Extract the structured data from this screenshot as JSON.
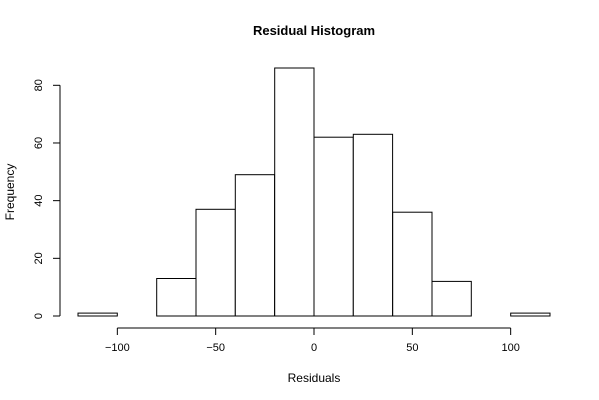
{
  "chart_data": {
    "type": "bar",
    "title": "Residual Histogram",
    "xlabel": "Residuals",
    "ylabel": "Frequency",
    "bin_edges": [
      -120,
      -100,
      -80,
      -60,
      -40,
      -20,
      0,
      20,
      40,
      60,
      80,
      100,
      120
    ],
    "values": [
      1,
      0,
      13,
      37,
      49,
      86,
      62,
      63,
      36,
      12,
      0,
      1
    ],
    "xlim": [
      -120,
      120
    ],
    "ylim": [
      0,
      86
    ],
    "xticks": [
      -100,
      -50,
      0,
      50,
      100
    ],
    "yticks": [
      0,
      20,
      40,
      60,
      80
    ],
    "grid": false,
    "legend": "none"
  }
}
